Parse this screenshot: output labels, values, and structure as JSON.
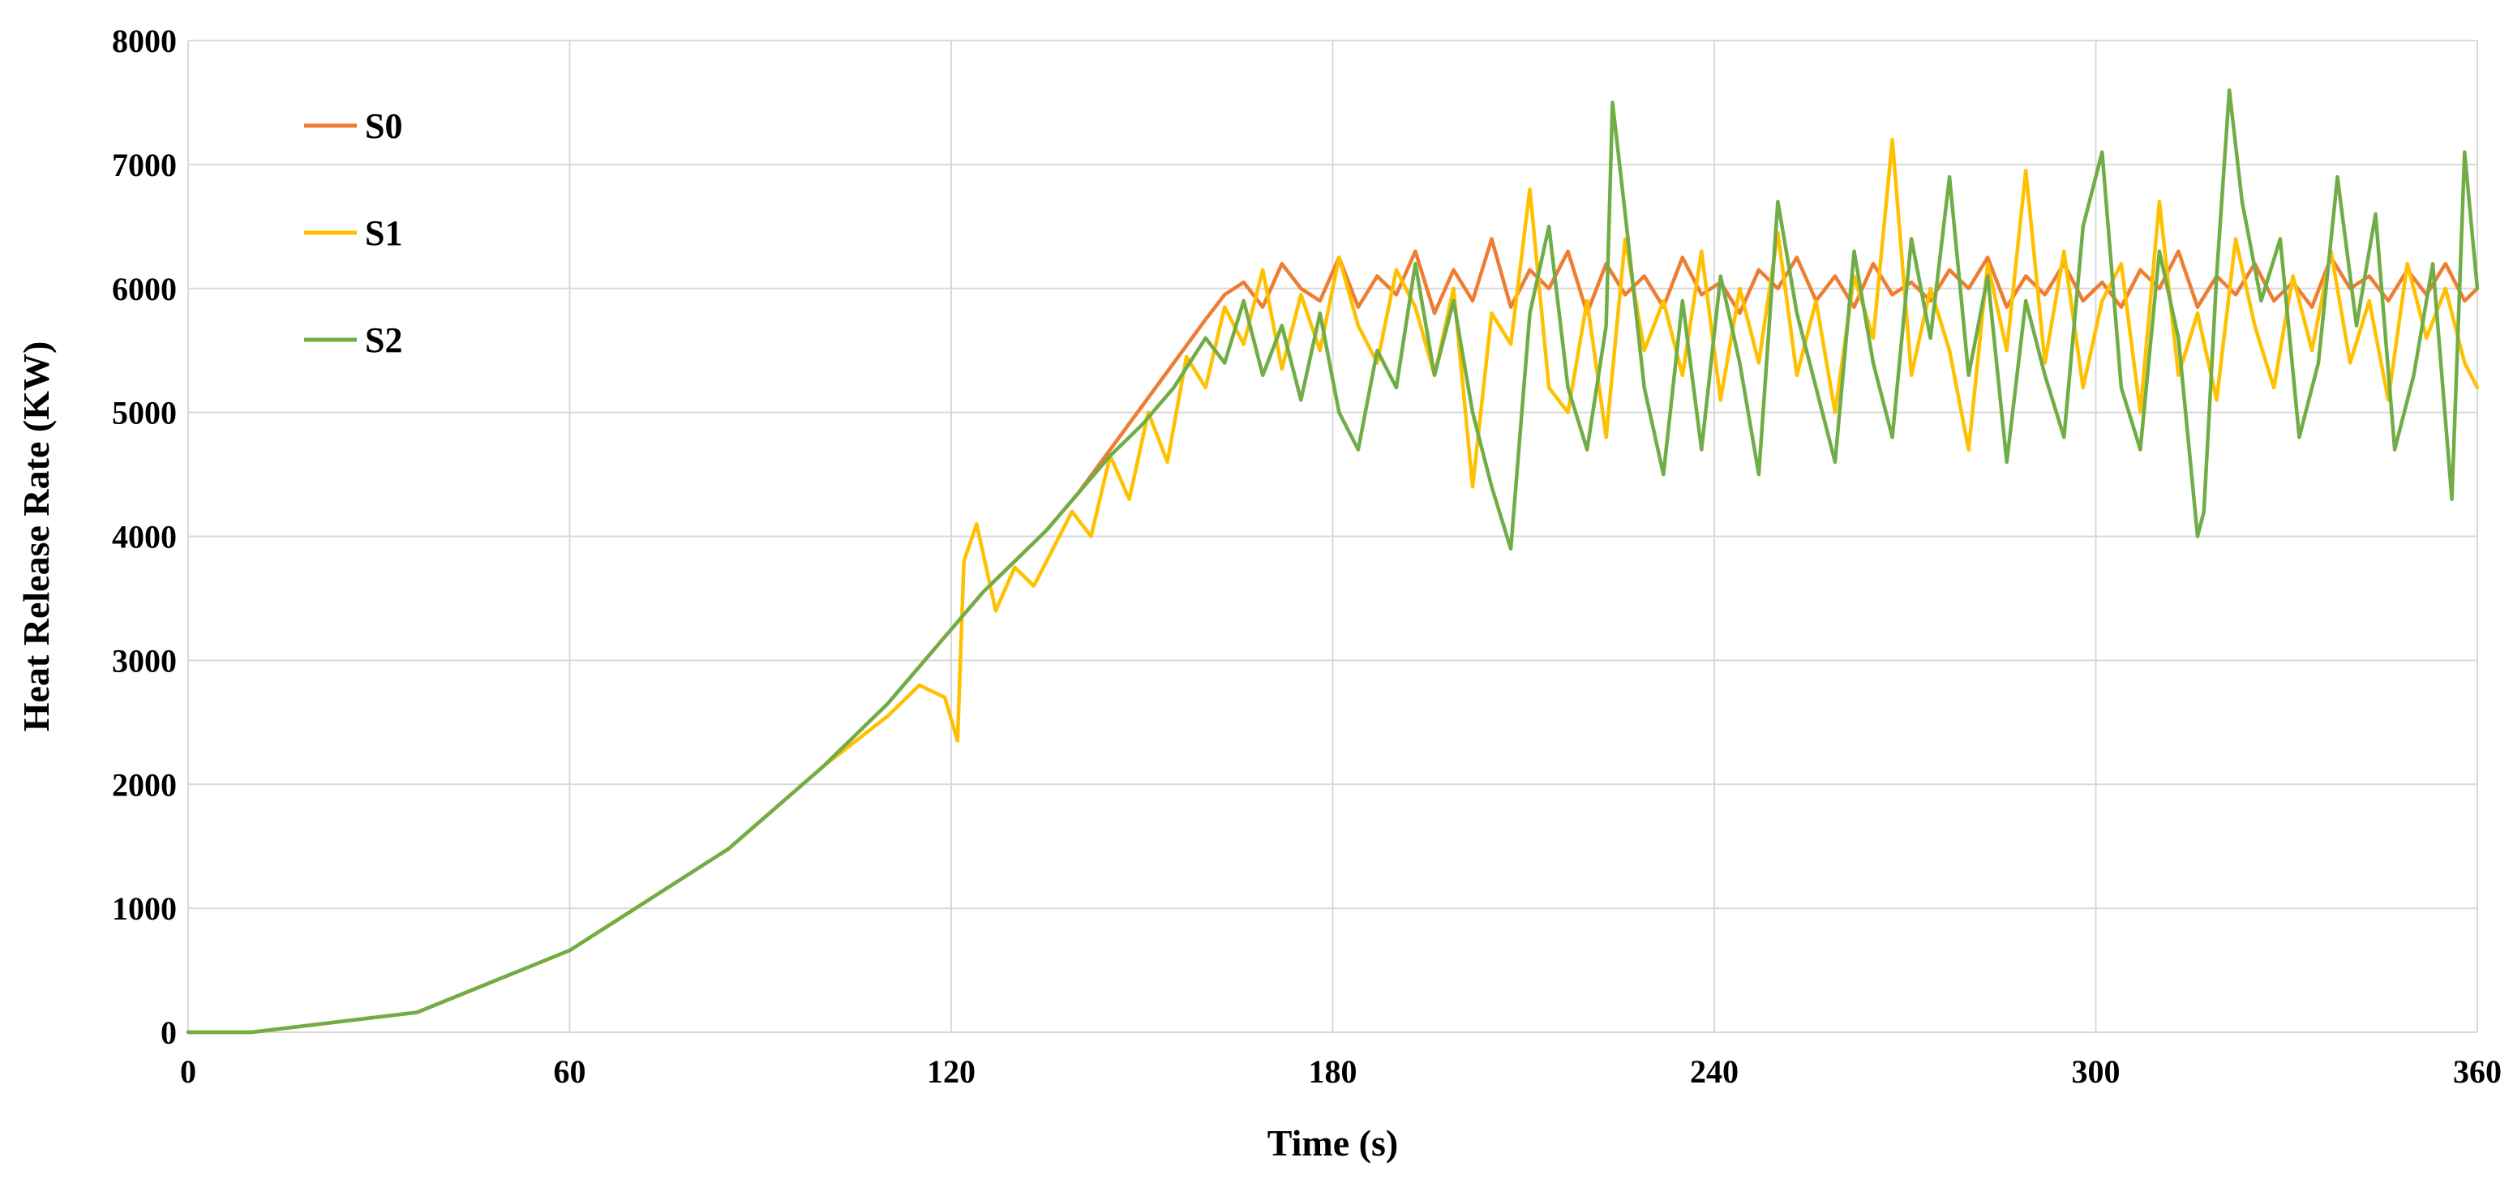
{
  "chart_data": {
    "type": "line",
    "title": "",
    "xlabel": "Time (s)",
    "ylabel": "Heat Release Rate (KW)",
    "xlim": [
      0,
      360
    ],
    "ylim": [
      0,
      8000
    ],
    "x_ticks": [
      0,
      60,
      120,
      180,
      240,
      300,
      360
    ],
    "y_ticks": [
      0,
      1000,
      2000,
      3000,
      4000,
      5000,
      6000,
      7000,
      8000
    ],
    "grid": true,
    "legend_position": "top-left",
    "series": [
      {
        "name": "S0",
        "color": "#ED7D31",
        "x": [
          0,
          10,
          36,
          60,
          85,
          100,
          110,
          120,
          125,
          130,
          135,
          140,
          145,
          150,
          155,
          160,
          163,
          166,
          169,
          172,
          175,
          178,
          181,
          184,
          187,
          190,
          193,
          196,
          199,
          202,
          205,
          208,
          211,
          214,
          217,
          220,
          223,
          226,
          229,
          232,
          235,
          238,
          241,
          244,
          247,
          250,
          253,
          256,
          259,
          262,
          265,
          268,
          271,
          274,
          277,
          280,
          283,
          286,
          289,
          292,
          295,
          298,
          301,
          304,
          307,
          310,
          313,
          316,
          319,
          322,
          325,
          328,
          331,
          334,
          337,
          340,
          343,
          346,
          349,
          352,
          355,
          358,
          360
        ],
        "y": [
          0,
          0,
          160,
          660,
          1480,
          2150,
          2650,
          3250,
          3550,
          3800,
          4050,
          4350,
          4700,
          5050,
          5400,
          5750,
          5950,
          6050,
          5850,
          6200,
          6000,
          5900,
          6250,
          5850,
          6100,
          5950,
          6300,
          5800,
          6150,
          5900,
          6400,
          5850,
          6150,
          6000,
          6300,
          5800,
          6200,
          5950,
          6100,
          5850,
          6250,
          5950,
          6050,
          5800,
          6150,
          6000,
          6250,
          5900,
          6100,
          5850,
          6200,
          5950,
          6050,
          5900,
          6150,
          6000,
          6250,
          5850,
          6100,
          5950,
          6200,
          5900,
          6050,
          5850,
          6150,
          6000,
          6300,
          5850,
          6100,
          5950,
          6200,
          5900,
          6050,
          5850,
          6250,
          6000,
          6100,
          5900,
          6150,
          5950,
          6200,
          5900,
          6000
        ]
      },
      {
        "name": "S1",
        "color": "#FFC000",
        "x": [
          0,
          10,
          36,
          60,
          85,
          100,
          110,
          115,
          119,
          121,
          122,
          124,
          127,
          130,
          133,
          136,
          139,
          142,
          145,
          148,
          151,
          154,
          157,
          160,
          163,
          166,
          169,
          172,
          175,
          178,
          181,
          184,
          187,
          190,
          193,
          196,
          199,
          202,
          205,
          208,
          211,
          214,
          217,
          220,
          223,
          226,
          229,
          232,
          235,
          238,
          241,
          244,
          247,
          250,
          253,
          256,
          259,
          262,
          265,
          268,
          271,
          274,
          277,
          280,
          283,
          286,
          289,
          292,
          295,
          298,
          301,
          304,
          307,
          310,
          313,
          316,
          319,
          322,
          325,
          328,
          331,
          334,
          337,
          340,
          343,
          346,
          349,
          352,
          355,
          358,
          360
        ],
        "y": [
          0,
          0,
          160,
          660,
          1480,
          2150,
          2550,
          2800,
          2700,
          2350,
          3800,
          4100,
          3400,
          3750,
          3600,
          3900,
          4200,
          4000,
          4650,
          4300,
          5000,
          4600,
          5450,
          5200,
          5850,
          5550,
          6150,
          5350,
          5950,
          5500,
          6250,
          5700,
          5400,
          6150,
          5850,
          5300,
          6000,
          4400,
          5800,
          5550,
          6800,
          5200,
          5000,
          5900,
          4800,
          6400,
          5500,
          5900,
          5300,
          6300,
          5100,
          6000,
          5400,
          6450,
          5300,
          5900,
          5000,
          6100,
          5600,
          7200,
          5300,
          6000,
          5500,
          4700,
          6200,
          5500,
          6950,
          5400,
          6300,
          5200,
          5900,
          6200,
          5000,
          6700,
          5300,
          5800,
          5100,
          6400,
          5700,
          5200,
          6100,
          5500,
          6300,
          5400,
          5900,
          5100,
          6200,
          5600,
          6000,
          5400,
          5200
        ]
      },
      {
        "name": "S2",
        "color": "#70AD47",
        "x": [
          0,
          10,
          36,
          60,
          85,
          100,
          110,
          120,
          125,
          130,
          135,
          140,
          145,
          150,
          155,
          160,
          163,
          166,
          169,
          172,
          175,
          178,
          181,
          184,
          187,
          190,
          193,
          196,
          199,
          202,
          205,
          208,
          211,
          214,
          217,
          220,
          223,
          224,
          226,
          229,
          232,
          235,
          238,
          241,
          244,
          247,
          250,
          253,
          256,
          259,
          262,
          265,
          268,
          271,
          274,
          277,
          280,
          283,
          286,
          289,
          292,
          295,
          298,
          301,
          304,
          307,
          310,
          313,
          316,
          317,
          319,
          321,
          323,
          326,
          329,
          332,
          335,
          338,
          341,
          344,
          347,
          350,
          353,
          356,
          358,
          360
        ],
        "y": [
          0,
          0,
          160,
          660,
          1480,
          2150,
          2650,
          3250,
          3550,
          3800,
          4050,
          4350,
          4650,
          4900,
          5200,
          5600,
          5400,
          5900,
          5300,
          5700,
          5100,
          5800,
          5000,
          4700,
          5500,
          5200,
          6200,
          5300,
          5900,
          5000,
          4400,
          3900,
          5800,
          6500,
          5200,
          4700,
          5700,
          7500,
          6600,
          5200,
          4500,
          5900,
          4700,
          6100,
          5400,
          4500,
          6700,
          5800,
          5200,
          4600,
          6300,
          5400,
          4800,
          6400,
          5600,
          6900,
          5300,
          6100,
          4600,
          5900,
          5300,
          4800,
          6500,
          7100,
          5200,
          4700,
          6300,
          5600,
          4000,
          4200,
          6100,
          7600,
          6700,
          5900,
          6400,
          4800,
          5400,
          6900,
          5700,
          6600,
          4700,
          5300,
          6200,
          4300,
          7100,
          6000
        ]
      }
    ]
  }
}
